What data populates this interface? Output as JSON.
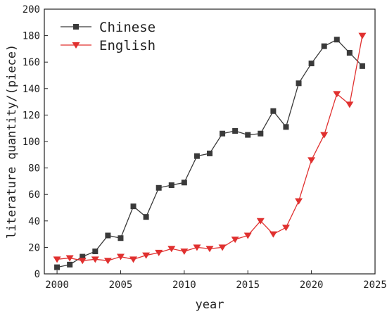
{
  "chart_data": {
    "type": "line",
    "xlabel": "year",
    "ylabel": "literature quantity/(piece)",
    "xlim": [
      1999,
      2025
    ],
    "ylim": [
      0,
      200
    ],
    "x_ticks": [
      2000,
      2005,
      2010,
      2015,
      2020,
      2025
    ],
    "y_ticks": [
      0,
      20,
      40,
      60,
      80,
      100,
      120,
      140,
      160,
      180,
      200
    ],
    "grid": false,
    "legend_position": "top-left",
    "x": [
      2000,
      2001,
      2002,
      2003,
      2004,
      2005,
      2006,
      2007,
      2008,
      2009,
      2010,
      2011,
      2012,
      2013,
      2014,
      2015,
      2016,
      2017,
      2018,
      2019,
      2020,
      2021,
      2022,
      2023,
      2024
    ],
    "series": [
      {
        "name": "Chinese",
        "color": "#3a3a3a",
        "marker": "square",
        "values": [
          5,
          7,
          13,
          17,
          29,
          27,
          51,
          43,
          65,
          67,
          69,
          89,
          91,
          106,
          108,
          105,
          106,
          123,
          111,
          144,
          159,
          172,
          177,
          167,
          157
        ]
      },
      {
        "name": "English",
        "color": "#e0302f",
        "marker": "triangle-down",
        "values": [
          11,
          12,
          10,
          11,
          10,
          13,
          11,
          14,
          16,
          19,
          17,
          20,
          19,
          20,
          26,
          29,
          40,
          30,
          35,
          55,
          86,
          105,
          136,
          128,
          180
        ]
      }
    ]
  }
}
